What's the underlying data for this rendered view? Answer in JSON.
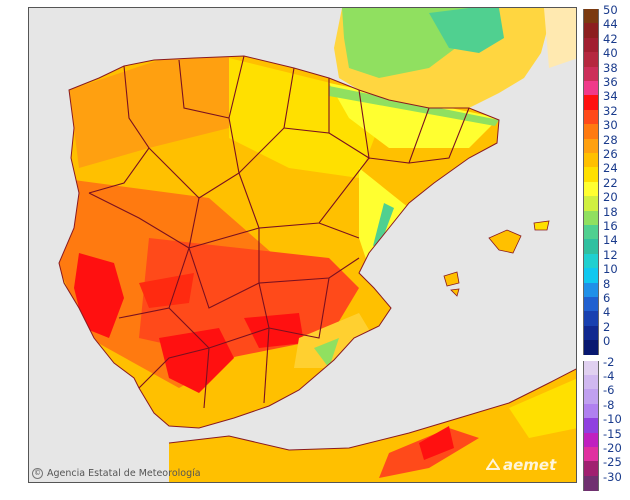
{
  "map": {
    "credit": "Agencia Estatal de Meteorología",
    "logo": "aemet",
    "copyright_symbol": "©",
    "colors": {
      "sea": "#e6e6e6",
      "borders": "#7a1020",
      "coast_line": "#8a7a7a"
    }
  },
  "legend": {
    "entries": [
      {
        "label": "50",
        "color": "#7b3a10"
      },
      {
        "label": "44",
        "color": "#8c1f1f"
      },
      {
        "label": "42",
        "color": "#a11f30"
      },
      {
        "label": "40",
        "color": "#b5283f"
      },
      {
        "label": "38",
        "color": "#cc2f5a"
      },
      {
        "label": "36",
        "color": "#f03a8a"
      },
      {
        "label": "34",
        "color": "#ff1010"
      },
      {
        "label": "32",
        "color": "#ff4a1a"
      },
      {
        "label": "30",
        "color": "#ff7a10"
      },
      {
        "label": "28",
        "color": "#ffa010"
      },
      {
        "label": "26",
        "color": "#ffc000"
      },
      {
        "label": "24",
        "color": "#ffe000"
      },
      {
        "label": "22",
        "color": "#ffff30"
      },
      {
        "label": "20",
        "color": "#d0f040"
      },
      {
        "label": "18",
        "color": "#90e060"
      },
      {
        "label": "16",
        "color": "#50d090"
      },
      {
        "label": "14",
        "color": "#30c0a0"
      },
      {
        "label": "12",
        "color": "#20d0d0"
      },
      {
        "label": "10",
        "color": "#10c8f0"
      },
      {
        "label": "8",
        "color": "#2090e8"
      },
      {
        "label": "6",
        "color": "#2060d0"
      },
      {
        "label": "4",
        "color": "#1840b0"
      },
      {
        "label": "2",
        "color": "#102890"
      },
      {
        "label": "0",
        "color": "#081870"
      },
      {
        "label": "-2",
        "color": "#e0d0f0"
      },
      {
        "label": "-4",
        "color": "#d0b8f0"
      },
      {
        "label": "-6",
        "color": "#c0a0f0"
      },
      {
        "label": "-8",
        "color": "#b080f0"
      },
      {
        "label": "-10",
        "color": "#9040e0"
      },
      {
        "label": "-15",
        "color": "#c020c0"
      },
      {
        "label": "-20",
        "color": "#e030a0"
      },
      {
        "label": "-25",
        "color": "#a02070"
      },
      {
        "label": "-30",
        "color": "#703070"
      }
    ]
  }
}
